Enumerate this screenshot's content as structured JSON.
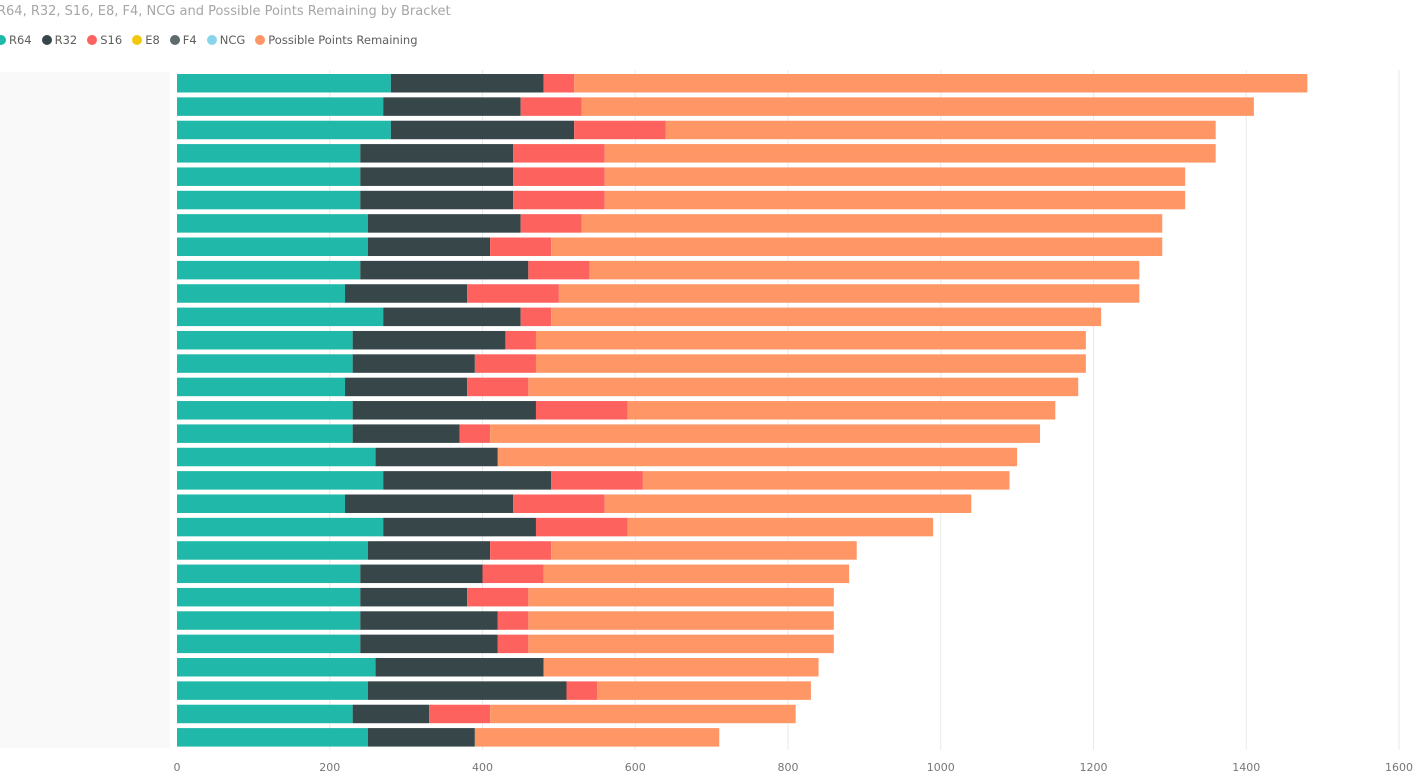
{
  "chart_data": {
    "type": "bar",
    "orientation": "horizontal",
    "stacked": true,
    "title": "R64, R32, S16, E8, F4, NCG and Possible Points Remaining by Bracket",
    "xlabel": "",
    "ylabel": "",
    "xlim": [
      0,
      1600
    ],
    "xticks": [
      0,
      200,
      400,
      600,
      800,
      1000,
      1200,
      1400,
      1600
    ],
    "grid": "vertical",
    "legend_position": "top-left",
    "legend": [
      {
        "name": "R64",
        "color": "#1FB8A9"
      },
      {
        "name": "R32",
        "color": "#374649"
      },
      {
        "name": "S16",
        "color": "#FD625E"
      },
      {
        "name": "E8",
        "color": "#F2C80F"
      },
      {
        "name": "F4",
        "color": "#5F6B6D"
      },
      {
        "name": "NCG",
        "color": "#8AD4EB"
      },
      {
        "name": "Possible Points Remaining",
        "color": "#FE9666"
      }
    ],
    "series": [
      {
        "name": "R64",
        "color": "#1FB8A9",
        "values": [
          280,
          270,
          280,
          240,
          240,
          240,
          250,
          250,
          240,
          220,
          270,
          230,
          230,
          220,
          230,
          230,
          260,
          270,
          220,
          270,
          250,
          240,
          240,
          240,
          240,
          260,
          250,
          230,
          250
        ]
      },
      {
        "name": "R32",
        "color": "#374649",
        "values": [
          200,
          180,
          240,
          200,
          200,
          200,
          200,
          160,
          220,
          160,
          180,
          200,
          160,
          160,
          240,
          140,
          160,
          220,
          220,
          200,
          160,
          160,
          140,
          180,
          180,
          220,
          260,
          100,
          140
        ]
      },
      {
        "name": "S16",
        "color": "#FD625E",
        "values": [
          40,
          80,
          120,
          120,
          120,
          120,
          80,
          80,
          80,
          120,
          40,
          40,
          80,
          80,
          120,
          40,
          0,
          120,
          120,
          120,
          80,
          80,
          80,
          40,
          40,
          0,
          40,
          80,
          0
        ]
      },
      {
        "name": "E8",
        "color": "#F2C80F",
        "values": [
          0,
          0,
          0,
          0,
          0,
          0,
          0,
          0,
          0,
          0,
          0,
          0,
          0,
          0,
          0,
          0,
          0,
          0,
          0,
          0,
          0,
          0,
          0,
          0,
          0,
          0,
          0,
          0,
          0
        ]
      },
      {
        "name": "F4",
        "color": "#5F6B6D",
        "values": [
          0,
          0,
          0,
          0,
          0,
          0,
          0,
          0,
          0,
          0,
          0,
          0,
          0,
          0,
          0,
          0,
          0,
          0,
          0,
          0,
          0,
          0,
          0,
          0,
          0,
          0,
          0,
          0,
          0
        ]
      },
      {
        "name": "NCG",
        "color": "#8AD4EB",
        "values": [
          0,
          0,
          0,
          0,
          0,
          0,
          0,
          0,
          0,
          0,
          0,
          0,
          0,
          0,
          0,
          0,
          0,
          0,
          0,
          0,
          0,
          0,
          0,
          0,
          0,
          0,
          0,
          0,
          0
        ]
      },
      {
        "name": "Possible Points Remaining",
        "color": "#FE9666",
        "values": [
          960,
          880,
          720,
          800,
          760,
          760,
          760,
          800,
          720,
          760,
          720,
          720,
          720,
          720,
          560,
          720,
          680,
          480,
          480,
          400,
          400,
          400,
          400,
          400,
          400,
          360,
          280,
          400,
          320
        ]
      }
    ]
  }
}
